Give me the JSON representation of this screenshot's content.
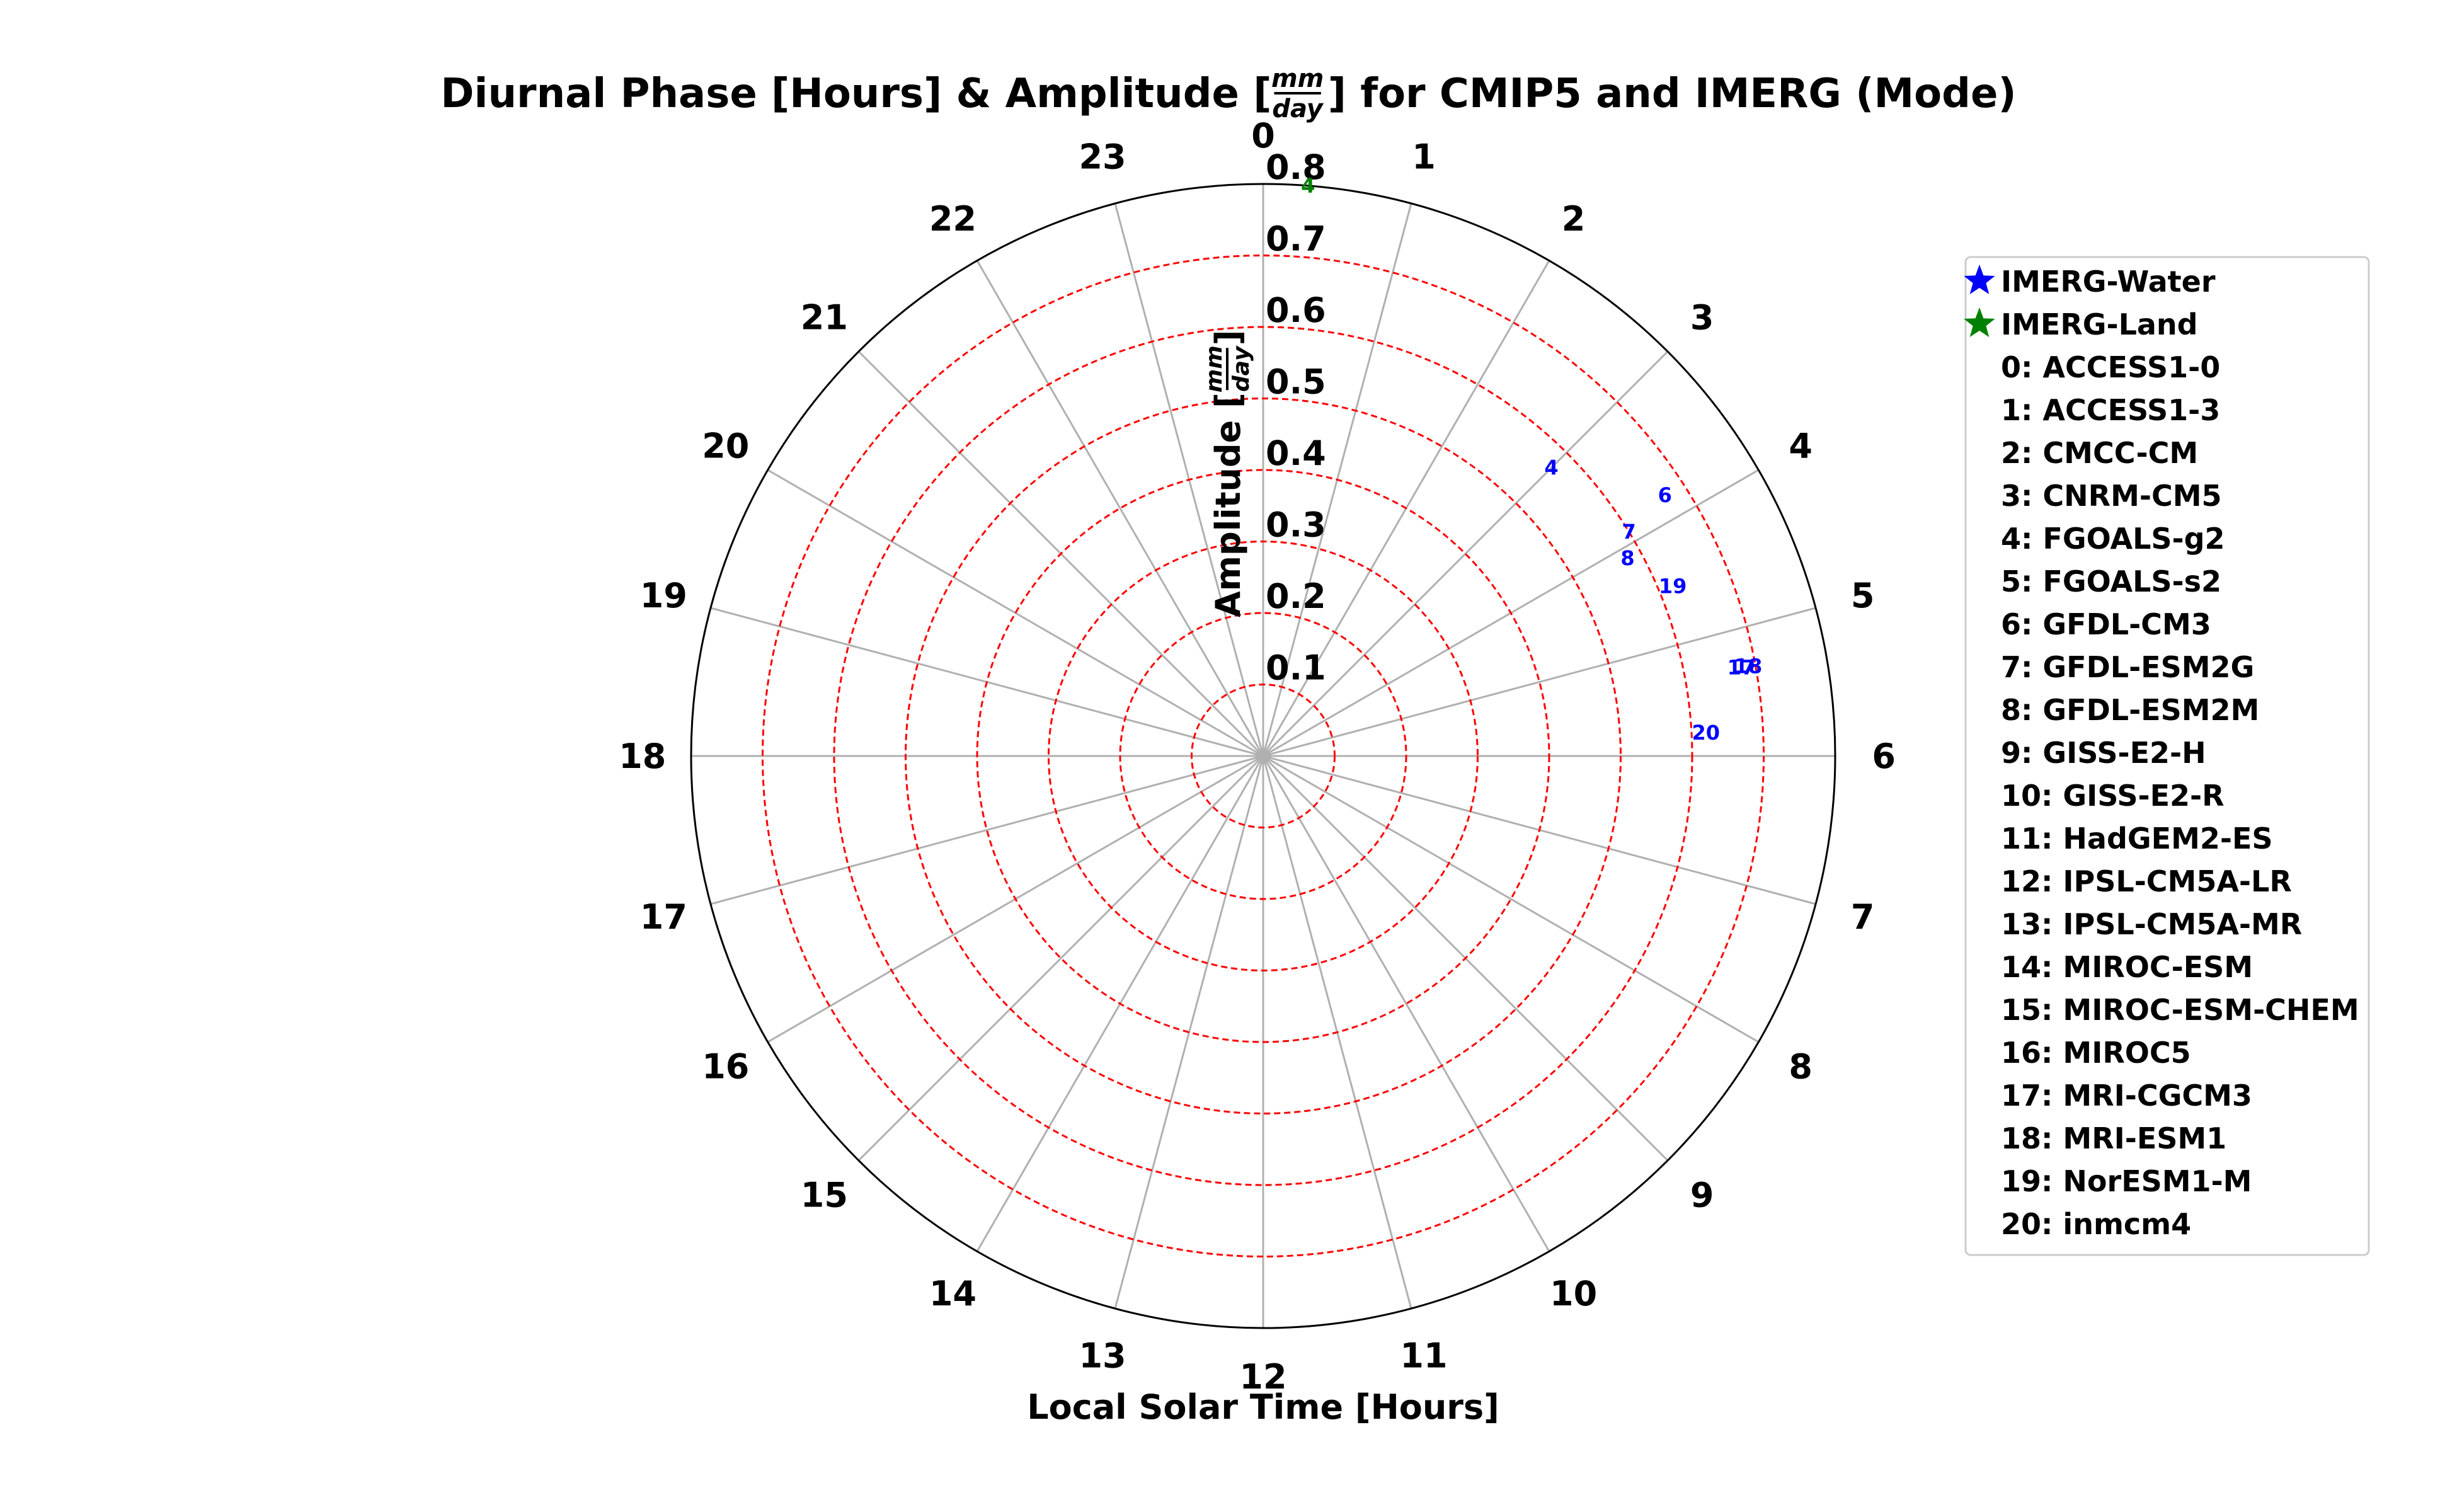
{
  "chart_data": {
    "type": "polar-scatter",
    "title": {
      "prefix": "Diurnal Phase [Hours] & Amplitude [",
      "unit_numerator": "mm",
      "unit_denominator": "day",
      "suffix": "] for CMIP5 and IMERG (Mode)"
    },
    "xlabel": "Local Solar Time [Hours]",
    "ylabel": {
      "prefix": "Amplitude [",
      "unit_numerator": "mm",
      "unit_denominator": "day",
      "suffix": "]"
    },
    "theta_range": [
      0,
      24
    ],
    "theta_direction": "clockwise",
    "theta_zero": "top",
    "theta_ticks": [
      "0",
      "1",
      "2",
      "3",
      "4",
      "5",
      "6",
      "7",
      "8",
      "9",
      "10",
      "11",
      "12",
      "13",
      "14",
      "15",
      "16",
      "17",
      "18",
      "19",
      "20",
      "21",
      "22",
      "23"
    ],
    "r_lim": [
      0,
      0.8
    ],
    "r_ticks": [
      "0.1",
      "0.2",
      "0.3",
      "0.4",
      "0.5",
      "0.6",
      "0.7",
      "0.8"
    ],
    "grid": true,
    "legend_placement": "right",
    "colors": {
      "water": "#0000ff",
      "land": "#008000",
      "amplitude_rings": "#ff0000",
      "phase_spokes": "#b0b0b0"
    },
    "series": [
      {
        "name": "IMERG-Water",
        "color": "#0000ff",
        "points": [
          {
            "label": "4",
            "phase": 3.0,
            "amplitude": 0.57
          },
          {
            "label": "7",
            "phase": 3.9,
            "amplitude": 0.6
          },
          {
            "label": "6",
            "phase": 3.8,
            "amplitude": 0.67
          },
          {
            "label": "8",
            "phase": 4.1,
            "amplitude": 0.58
          },
          {
            "label": "19",
            "phase": 4.5,
            "amplitude": 0.62
          },
          {
            "label": "18",
            "phase": 5.3,
            "amplitude": 0.69
          },
          {
            "label": "17",
            "phase": 5.3,
            "amplitude": 0.68
          },
          {
            "label": "20",
            "phase": 5.8,
            "amplitude": 0.62
          }
        ]
      },
      {
        "name": "IMERG-Land",
        "color": "#008000",
        "points": [
          {
            "label": "4",
            "phase": 0.3,
            "amplitude": 0.8
          }
        ]
      }
    ],
    "models": [
      "0: ACCESS1-0",
      "1: ACCESS1-3",
      "2: CMCC-CM",
      "3: CNRM-CM5",
      "4: FGOALS-g2",
      "5: FGOALS-s2",
      "6: GFDL-CM3",
      "7: GFDL-ESM2G",
      "8: GFDL-ESM2M",
      "9: GISS-E2-H",
      "10: GISS-E2-R",
      "11: HadGEM2-ES",
      "12: IPSL-CM5A-LR",
      "13: IPSL-CM5A-MR",
      "14: MIROC-ESM",
      "15: MIROC-ESM-CHEM",
      "16: MIROC5",
      "17: MRI-CGCM3",
      "18: MRI-ESM1",
      "19: NorESM1-M",
      "20: inmcm4"
    ]
  }
}
